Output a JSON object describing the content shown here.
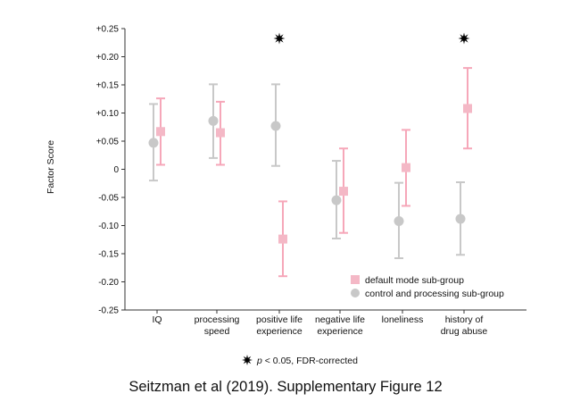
{
  "chart_data": {
    "type": "scatter",
    "ylabel": "Factor Score",
    "ylim": [
      -0.25,
      0.25
    ],
    "yticks": [
      {
        "value": 0.25,
        "label": "+0.25"
      },
      {
        "value": 0.2,
        "label": "+0.20"
      },
      {
        "value": 0.15,
        "label": "+0.15"
      },
      {
        "value": 0.1,
        "label": "+0.10"
      },
      {
        "value": 0.05,
        "label": "+0.05"
      },
      {
        "value": 0,
        "label": "0"
      },
      {
        "value": -0.05,
        "label": "-0.05"
      },
      {
        "value": -0.1,
        "label": "-0.10"
      },
      {
        "value": -0.15,
        "label": "-0.15"
      },
      {
        "value": -0.2,
        "label": "-0.20"
      },
      {
        "value": -0.25,
        "label": "-0.25"
      }
    ],
    "categories": [
      [
        "IQ"
      ],
      [
        "processing",
        "speed"
      ],
      [
        "positive life",
        "experience"
      ],
      [
        "negative life",
        "experience"
      ],
      [
        "loneliness"
      ],
      [
        "history of",
        "drug abuse"
      ]
    ],
    "series": [
      {
        "name": "default mode sub-group",
        "marker": "square",
        "color": "#f4b8c6",
        "errcolor": "#f6a7b9",
        "values": [
          0.067,
          0.065,
          -0.124,
          -0.039,
          0.003,
          0.108
        ],
        "err_low": [
          0.008,
          0.008,
          -0.19,
          -0.113,
          -0.065,
          0.037
        ],
        "err_high": [
          0.126,
          0.12,
          -0.057,
          0.037,
          0.07,
          0.18
        ]
      },
      {
        "name": "control and processing sub-group",
        "marker": "circle",
        "color": "#c8c8c8",
        "errcolor": "#c8c8c8",
        "values": [
          0.047,
          0.086,
          0.077,
          -0.055,
          -0.092,
          -0.088
        ],
        "err_low": [
          -0.02,
          0.02,
          0.006,
          -0.123,
          -0.158,
          -0.152
        ],
        "err_high": [
          0.116,
          0.151,
          0.151,
          0.015,
          -0.024,
          -0.023
        ]
      }
    ],
    "significant": [
      false,
      false,
      true,
      false,
      false,
      true
    ],
    "legend_position": "bottom-right",
    "footnote_italic": "p",
    "footnote_rest": " < 0.05, FDR-corrected"
  },
  "caption": "Seitzman et al (2019). Supplementary Figure 12"
}
